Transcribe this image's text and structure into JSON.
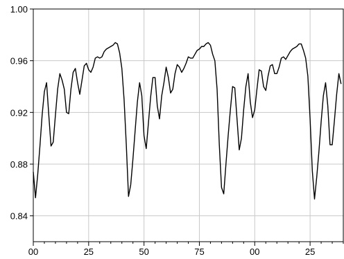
{
  "chart_data": {
    "type": "line",
    "title": "",
    "xlabel": "",
    "ylabel": "",
    "x_tick_labels": [
      "00",
      "25",
      "50",
      "75",
      "00",
      "25"
    ],
    "y_tick_labels": [
      "1.00",
      "0.96",
      "0.92",
      "0.88",
      "0.84"
    ],
    "y_ticks": [
      1.0,
      0.96,
      0.92,
      0.88,
      0.84
    ],
    "ylim": [
      0.82,
      1.0
    ],
    "xlim": [
      0,
      140
    ],
    "grid": true,
    "series": [
      {
        "line_color": "#000000",
        "values": [
          0.874,
          0.854,
          0.872,
          0.894,
          0.918,
          0.936,
          0.943,
          0.918,
          0.894,
          0.897,
          0.918,
          0.938,
          0.95,
          0.945,
          0.938,
          0.92,
          0.919,
          0.938,
          0.951,
          0.954,
          0.943,
          0.934,
          0.945,
          0.956,
          0.958,
          0.953,
          0.951,
          0.955,
          0.962,
          0.963,
          0.962,
          0.963,
          0.967,
          0.969,
          0.97,
          0.971,
          0.972,
          0.974,
          0.973,
          0.966,
          0.954,
          0.93,
          0.895,
          0.855,
          0.864,
          0.884,
          0.906,
          0.928,
          0.943,
          0.933,
          0.902,
          0.892,
          0.912,
          0.932,
          0.947,
          0.947,
          0.925,
          0.915,
          0.933,
          0.943,
          0.955,
          0.947,
          0.935,
          0.938,
          0.95,
          0.957,
          0.955,
          0.951,
          0.954,
          0.958,
          0.963,
          0.962,
          0.962,
          0.965,
          0.968,
          0.969,
          0.971,
          0.971,
          0.973,
          0.974,
          0.972,
          0.965,
          0.96,
          0.938,
          0.895,
          0.862,
          0.857,
          0.88,
          0.902,
          0.922,
          0.94,
          0.939,
          0.915,
          0.891,
          0.9,
          0.922,
          0.94,
          0.95,
          0.928,
          0.916,
          0.922,
          0.938,
          0.953,
          0.952,
          0.94,
          0.937,
          0.948,
          0.956,
          0.957,
          0.95,
          0.95,
          0.955,
          0.962,
          0.963,
          0.961,
          0.964,
          0.967,
          0.969,
          0.97,
          0.971,
          0.973,
          0.973,
          0.968,
          0.962,
          0.948,
          0.915,
          0.875,
          0.853,
          0.87,
          0.89,
          0.913,
          0.933,
          0.943,
          0.925,
          0.895,
          0.895,
          0.914,
          0.934,
          0.95,
          0.942
        ]
      }
    ]
  }
}
